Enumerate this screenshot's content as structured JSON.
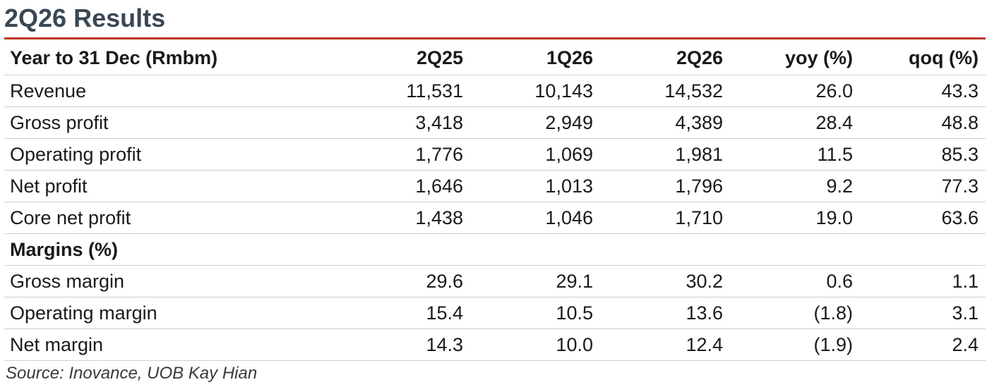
{
  "title": "2Q26 Results",
  "accent_color": "#c0392b",
  "table": {
    "header": {
      "label": "Year to 31 Dec (Rmbm)",
      "c1": "2Q25",
      "c2": "1Q26",
      "c3": "2Q26",
      "c4": "yoy (%)",
      "c5": "qoq (%)"
    },
    "rows": [
      {
        "label": "Revenue",
        "c1": "11,531",
        "c2": "10,143",
        "c3": "14,532",
        "c4": "26.0",
        "c5": "43.3"
      },
      {
        "label": "Gross profit",
        "c1": "3,418",
        "c2": "2,949",
        "c3": "4,389",
        "c4": "28.4",
        "c5": "48.8"
      },
      {
        "label": "Operating profit",
        "c1": "1,776",
        "c2": "1,069",
        "c3": "1,981",
        "c4": "11.5",
        "c5": "85.3"
      },
      {
        "label": "Net profit",
        "c1": "1,646",
        "c2": "1,013",
        "c3": "1,796",
        "c4": "9.2",
        "c5": "77.3"
      },
      {
        "label": "Core net profit",
        "c1": "1,438",
        "c2": "1,046",
        "c3": "1,710",
        "c4": "19.0",
        "c5": "63.6"
      }
    ],
    "section_label": "Margins (%)",
    "margin_rows": [
      {
        "label": "Gross margin",
        "c1": "29.6",
        "c2": "29.1",
        "c3": "30.2",
        "c4": "0.6",
        "c5": "1.1"
      },
      {
        "label": "Operating margin",
        "c1": "15.4",
        "c2": "10.5",
        "c3": "13.6",
        "c4": "(1.8)",
        "c5": "3.1"
      },
      {
        "label": "Net margin",
        "c1": "14.3",
        "c2": "10.0",
        "c3": "12.4",
        "c4": "(1.9)",
        "c5": "2.4"
      }
    ]
  },
  "source": "Source: Inovance, UOB Kay Hian"
}
